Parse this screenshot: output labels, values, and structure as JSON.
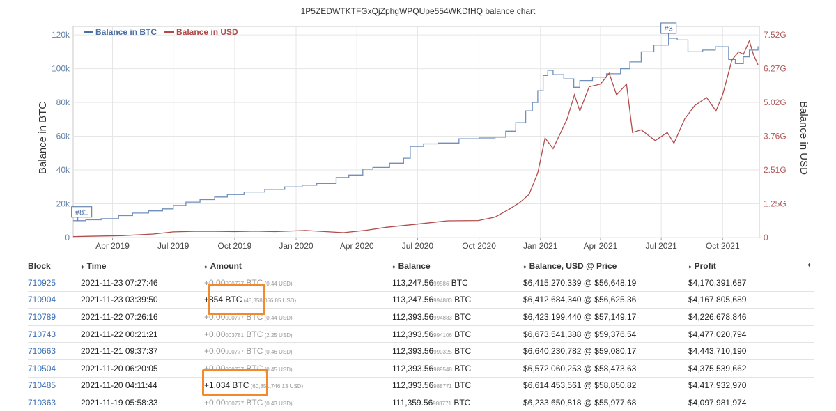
{
  "chart_data": {
    "type": "line",
    "title": "1P5ZEDWTKTFGxQjZphgWPQUpe554WKDfHQ balance chart",
    "legend": {
      "placement": "top-left"
    },
    "grid": true,
    "x_tick_labels": [
      "Apr 2019",
      "Jul 2019",
      "Oct 2019",
      "Jan 2020",
      "Apr 2020",
      "Jul 2020",
      "Oct 2020",
      "Jan 2021",
      "Apr 2021",
      "Jul 2021",
      "Oct 2021"
    ],
    "x_range": [
      "2019-02-01",
      "2021-11-25"
    ],
    "y_left": {
      "label": "Balance in BTC",
      "ticks": [
        "0",
        "20k",
        "40k",
        "60k",
        "80k",
        "100k",
        "120k"
      ],
      "range": [
        0,
        125000
      ]
    },
    "y_right": {
      "label": "Balance in USD",
      "ticks": [
        "0",
        "1.25G",
        "2.51G",
        "3.76G",
        "5.02G",
        "6.27G",
        "7.52G"
      ],
      "range": [
        0,
        7838000000
      ]
    },
    "flags": [
      {
        "label": "#81",
        "x": "2019-02-08",
        "series": "Balance in BTC"
      },
      {
        "label": "#3",
        "x": "2021-07-12",
        "series": "Balance in BTC"
      }
    ],
    "series": [
      {
        "name": "Balance in BTC",
        "color": "#6f8fbb",
        "axis": "left",
        "points": [
          [
            "2019-02-01",
            10000
          ],
          [
            "2019-02-20",
            10500
          ],
          [
            "2019-03-15",
            11200
          ],
          [
            "2019-04-10",
            13000
          ],
          [
            "2019-05-01",
            14500
          ],
          [
            "2019-05-25",
            15800
          ],
          [
            "2019-06-15",
            17000
          ],
          [
            "2019-07-01",
            19000
          ],
          [
            "2019-07-20",
            21000
          ],
          [
            "2019-08-10",
            22500
          ],
          [
            "2019-09-01",
            24000
          ],
          [
            "2019-09-20",
            25500
          ],
          [
            "2019-10-15",
            27000
          ],
          [
            "2019-11-15",
            28500
          ],
          [
            "2019-12-15",
            30000
          ],
          [
            "2020-01-10",
            31000
          ],
          [
            "2020-02-01",
            32000
          ],
          [
            "2020-03-01",
            35500
          ],
          [
            "2020-03-20",
            37000
          ],
          [
            "2020-04-10",
            40500
          ],
          [
            "2020-04-25",
            41500
          ],
          [
            "2020-05-20",
            44000
          ],
          [
            "2020-06-10",
            47000
          ],
          [
            "2020-06-20",
            54000
          ],
          [
            "2020-07-10",
            55500
          ],
          [
            "2020-08-01",
            56000
          ],
          [
            "2020-09-01",
            58500
          ],
          [
            "2020-10-01",
            59000
          ],
          [
            "2020-10-25",
            59500
          ],
          [
            "2020-11-10",
            63000
          ],
          [
            "2020-11-25",
            68000
          ],
          [
            "2020-12-10",
            75000
          ],
          [
            "2020-12-20",
            80000
          ],
          [
            "2020-12-28",
            87000
          ],
          [
            "2021-01-05",
            96000
          ],
          [
            "2021-01-12",
            99000
          ],
          [
            "2021-01-20",
            96500
          ],
          [
            "2021-02-05",
            94000
          ],
          [
            "2021-02-20",
            89000
          ],
          [
            "2021-03-01",
            93000
          ],
          [
            "2021-03-20",
            95000
          ],
          [
            "2021-04-10",
            97000
          ],
          [
            "2021-05-01",
            100000
          ],
          [
            "2021-05-15",
            104000
          ],
          [
            "2021-06-01",
            110000
          ],
          [
            "2021-06-20",
            114000
          ],
          [
            "2021-07-12",
            118000
          ],
          [
            "2021-07-25",
            117000
          ],
          [
            "2021-08-10",
            110000
          ],
          [
            "2021-09-01",
            111000
          ],
          [
            "2021-09-20",
            113000
          ],
          [
            "2021-10-10",
            105500
          ],
          [
            "2021-10-20",
            103000
          ],
          [
            "2021-11-01",
            107000
          ],
          [
            "2021-11-10",
            111000
          ],
          [
            "2021-11-23",
            113248
          ]
        ]
      },
      {
        "name": "Balance in USD",
        "color": "#b14c4c",
        "axis": "right",
        "points": [
          [
            "2019-02-01",
            35000000
          ],
          [
            "2019-04-15",
            70000000
          ],
          [
            "2019-06-01",
            130000000
          ],
          [
            "2019-07-01",
            210000000
          ],
          [
            "2019-08-01",
            230000000
          ],
          [
            "2019-09-01",
            230000000
          ],
          [
            "2019-10-01",
            220000000
          ],
          [
            "2019-11-01",
            235000000
          ],
          [
            "2019-12-01",
            220000000
          ],
          [
            "2020-01-15",
            260000000
          ],
          [
            "2020-03-12",
            180000000
          ],
          [
            "2020-04-15",
            270000000
          ],
          [
            "2020-05-15",
            380000000
          ],
          [
            "2020-07-01",
            500000000
          ],
          [
            "2020-08-15",
            620000000
          ],
          [
            "2020-09-30",
            630000000
          ],
          [
            "2020-10-25",
            760000000
          ],
          [
            "2020-11-15",
            1050000000
          ],
          [
            "2020-12-01",
            1300000000
          ],
          [
            "2020-12-15",
            1600000000
          ],
          [
            "2020-12-28",
            2400000000
          ],
          [
            "2021-01-08",
            3700000000
          ],
          [
            "2021-01-20",
            3300000000
          ],
          [
            "2021-02-10",
            4400000000
          ],
          [
            "2021-02-21",
            5300000000
          ],
          [
            "2021-03-01",
            4700000000
          ],
          [
            "2021-03-15",
            5600000000
          ],
          [
            "2021-04-01",
            5700000000
          ],
          [
            "2021-04-14",
            6100000000
          ],
          [
            "2021-04-25",
            5300000000
          ],
          [
            "2021-05-10",
            5700000000
          ],
          [
            "2021-05-19",
            3900000000
          ],
          [
            "2021-06-01",
            4000000000
          ],
          [
            "2021-06-22",
            3600000000
          ],
          [
            "2021-07-10",
            3900000000
          ],
          [
            "2021-07-20",
            3500000000
          ],
          [
            "2021-08-05",
            4400000000
          ],
          [
            "2021-08-20",
            4900000000
          ],
          [
            "2021-09-07",
            5200000000
          ],
          [
            "2021-09-21",
            4700000000
          ],
          [
            "2021-10-01",
            5300000000
          ],
          [
            "2021-10-15",
            6600000000
          ],
          [
            "2021-10-25",
            6900000000
          ],
          [
            "2021-11-01",
            6800000000
          ],
          [
            "2021-11-10",
            7300000000
          ],
          [
            "2021-11-16",
            6800000000
          ],
          [
            "2021-11-23",
            6415000000
          ]
        ]
      }
    ]
  },
  "table": {
    "headers": [
      "Block",
      "Time",
      "Amount",
      "Balance",
      "Balance, USD @ Price",
      "Profit"
    ],
    "rows": [
      {
        "block": "710925",
        "time": "2021-11-23 07:27:46",
        "amount_main": "+0.00",
        "amount_small": "000777",
        "amount_unit": " BTC",
        "amount_usd": " (0.44 USD)",
        "amount_big": false,
        "balance_main": "113,247.56",
        "balance_small": "99586",
        "balance_unit": " BTC",
        "usd": "$6,415,270,339 @ $56,648.19",
        "profit": "$4,170,391,687"
      },
      {
        "block": "710904",
        "time": "2021-11-23 03:39:50",
        "amount_main": "+854",
        "amount_small": "",
        "amount_unit": " BTC",
        "amount_usd": " (48,358,056.85 USD)",
        "amount_big": true,
        "balance_main": "113,247.56",
        "balance_small": "994883",
        "balance_unit": " BTC",
        "usd": "$6,412,684,340 @ $56,625.36",
        "profit": "$4,167,805,689"
      },
      {
        "block": "710789",
        "time": "2021-11-22 07:26:16",
        "amount_main": "+0.00",
        "amount_small": "000777",
        "amount_unit": " BTC",
        "amount_usd": " (0.44 USD)",
        "amount_big": false,
        "balance_main": "112,393.56",
        "balance_small": "994883",
        "balance_unit": " BTC",
        "usd": "$6,423,199,440 @ $57,149.17",
        "profit": "$4,226,678,846"
      },
      {
        "block": "710743",
        "time": "2021-11-22 00:21:21",
        "amount_main": "+0.00",
        "amount_small": "003781",
        "amount_unit": " BTC",
        "amount_usd": " (2.25 USD)",
        "amount_big": false,
        "balance_main": "112,393.56",
        "balance_small": "994106",
        "balance_unit": " BTC",
        "usd": "$6,673,541,388 @ $59,376.54",
        "profit": "$4,477,020,794"
      },
      {
        "block": "710663",
        "time": "2021-11-21 09:37:37",
        "amount_main": "+0.00",
        "amount_small": "000777",
        "amount_unit": " BTC",
        "amount_usd": " (0.46 USD)",
        "amount_big": false,
        "balance_main": "112,393.56",
        "balance_small": "990325",
        "balance_unit": " BTC",
        "usd": "$6,640,230,782 @ $59,080.17",
        "profit": "$4,443,710,190"
      },
      {
        "block": "710504",
        "time": "2021-11-20 06:20:05",
        "amount_main": "+0.00",
        "amount_small": "000777",
        "amount_unit": " BTC",
        "amount_usd": " (0.45 USD)",
        "amount_big": false,
        "balance_main": "112,393.56",
        "balance_small": "989548",
        "balance_unit": " BTC",
        "usd": "$6,572,060,253 @ $58,473.63",
        "profit": "$4,375,539,662"
      },
      {
        "block": "710485",
        "time": "2021-11-20 04:11:44",
        "amount_main": "+1,034",
        "amount_small": "",
        "amount_unit": " BTC",
        "amount_usd": " (60,851,746.13 USD)",
        "amount_big": true,
        "balance_main": "112,393.56",
        "balance_small": "988771",
        "balance_unit": " BTC",
        "usd": "$6,614,453,561 @ $58,850.82",
        "profit": "$4,417,932,970"
      },
      {
        "block": "710363",
        "time": "2021-11-19 05:58:33",
        "amount_main": "+0.00",
        "amount_small": "000777",
        "amount_unit": " BTC",
        "amount_usd": " (0.43 USD)",
        "amount_big": false,
        "balance_main": "111,359.56",
        "balance_small": "988771",
        "balance_unit": " BTC",
        "usd": "$6,233,650,818 @ $55,977.68",
        "profit": "$4,097,981,974"
      }
    ]
  },
  "highlight_color": "#f08a2c"
}
